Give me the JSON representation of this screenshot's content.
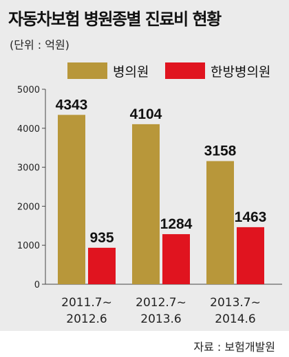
{
  "title": "자동차보험 병원종별 진료비 현황",
  "unit": "(단위 : 억원)",
  "source": "자료 : 보험개발원",
  "colors": {
    "hospital": "#b8973a",
    "oriental": "#e0141f",
    "panel": "#ebebeb"
  },
  "chart_data": {
    "type": "bar",
    "categories": [
      [
        "2011.7~",
        "2012.6"
      ],
      [
        "2012.7~",
        "2013.6"
      ],
      [
        "2013.7~",
        "2014.6"
      ]
    ],
    "series": [
      {
        "name": "병의원",
        "values": [
          4343,
          4104,
          3158
        ]
      },
      {
        "name": "한방병의원",
        "values": [
          935,
          1284,
          1463
        ]
      }
    ],
    "yticks": [
      "5000",
      "4000",
      "3000",
      "2000",
      "1000",
      "0"
    ],
    "ylim": [
      0,
      5000
    ],
    "legend": "top",
    "grid": false
  }
}
